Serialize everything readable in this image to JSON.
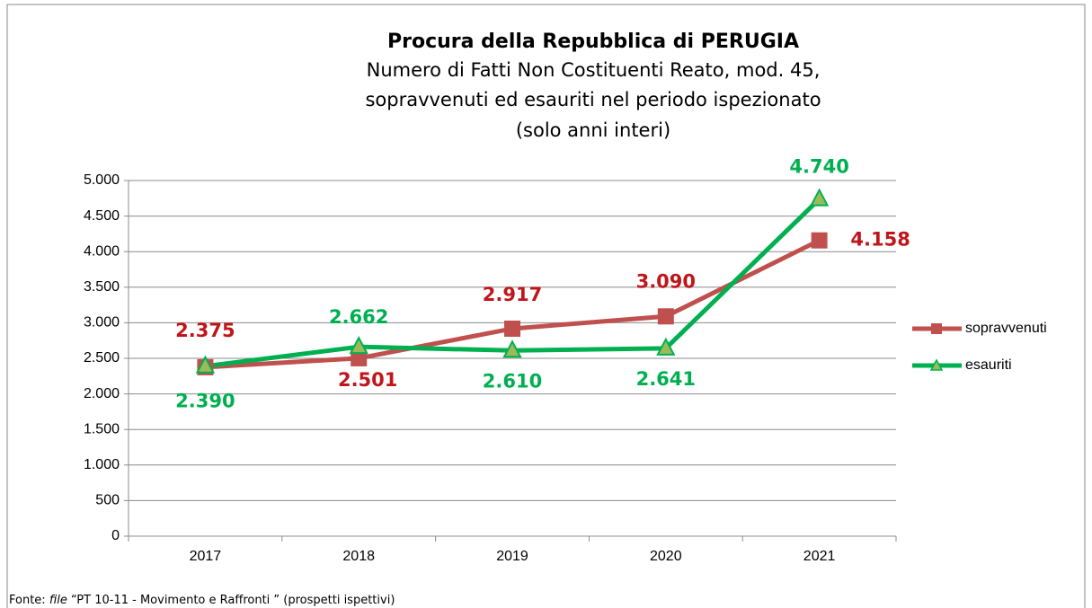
{
  "chart_data": {
    "type": "line",
    "title": "Procura della Repubblica di PERUGIA",
    "subtitle": [
      "Numero di Fatti Non Costituenti Reato, mod. 45,",
      "sopravvenuti ed esauriti nel periodo ispezionato",
      "(solo anni interi)"
    ],
    "source": [
      "Fonte: ",
      "file",
      " “PT  10-11 - Movimento e Raffronti ” (prospetti ispettivi)"
    ],
    "categories": [
      "2017",
      "2018",
      "2019",
      "2020",
      "2021"
    ],
    "series": [
      {
        "name": "sopravvenuti",
        "color": "#c0504d",
        "marker": "square",
        "label_color": "#c0161b",
        "values": [
          2375,
          2501,
          2917,
          3090,
          4158
        ],
        "value_labels": [
          "2.375",
          "2.501",
          "2.917",
          "3.090",
          "4.158"
        ]
      },
      {
        "name": "esauriti",
        "color": "#00b050",
        "marker": "triangle",
        "marker_fill": "#9bbb59",
        "label_color": "#00b050",
        "values": [
          2390,
          2662,
          2610,
          2641,
          4740
        ],
        "value_labels": [
          "2.390",
          "2.662",
          "2.610",
          "2.641",
          "4.740"
        ]
      }
    ],
    "ylim": [
      0,
      5000
    ],
    "yticks": [
      0,
      500,
      {
        "value": 1000,
        "label": "1.000"
      },
      {
        "value": 1500,
        "label": "1.500"
      },
      {
        "value": 2000,
        "label": "2.000"
      },
      {
        "value": 2500,
        "label": "2.500"
      },
      {
        "value": 3000,
        "label": "3.000"
      },
      {
        "value": 3500,
        "label": "3.500"
      },
      {
        "value": 4000,
        "label": "4.000"
      },
      {
        "value": 4500,
        "label": "4.500"
      },
      {
        "value": 5000,
        "label": "5.000"
      }
    ],
    "grid": true,
    "legend": "right"
  }
}
